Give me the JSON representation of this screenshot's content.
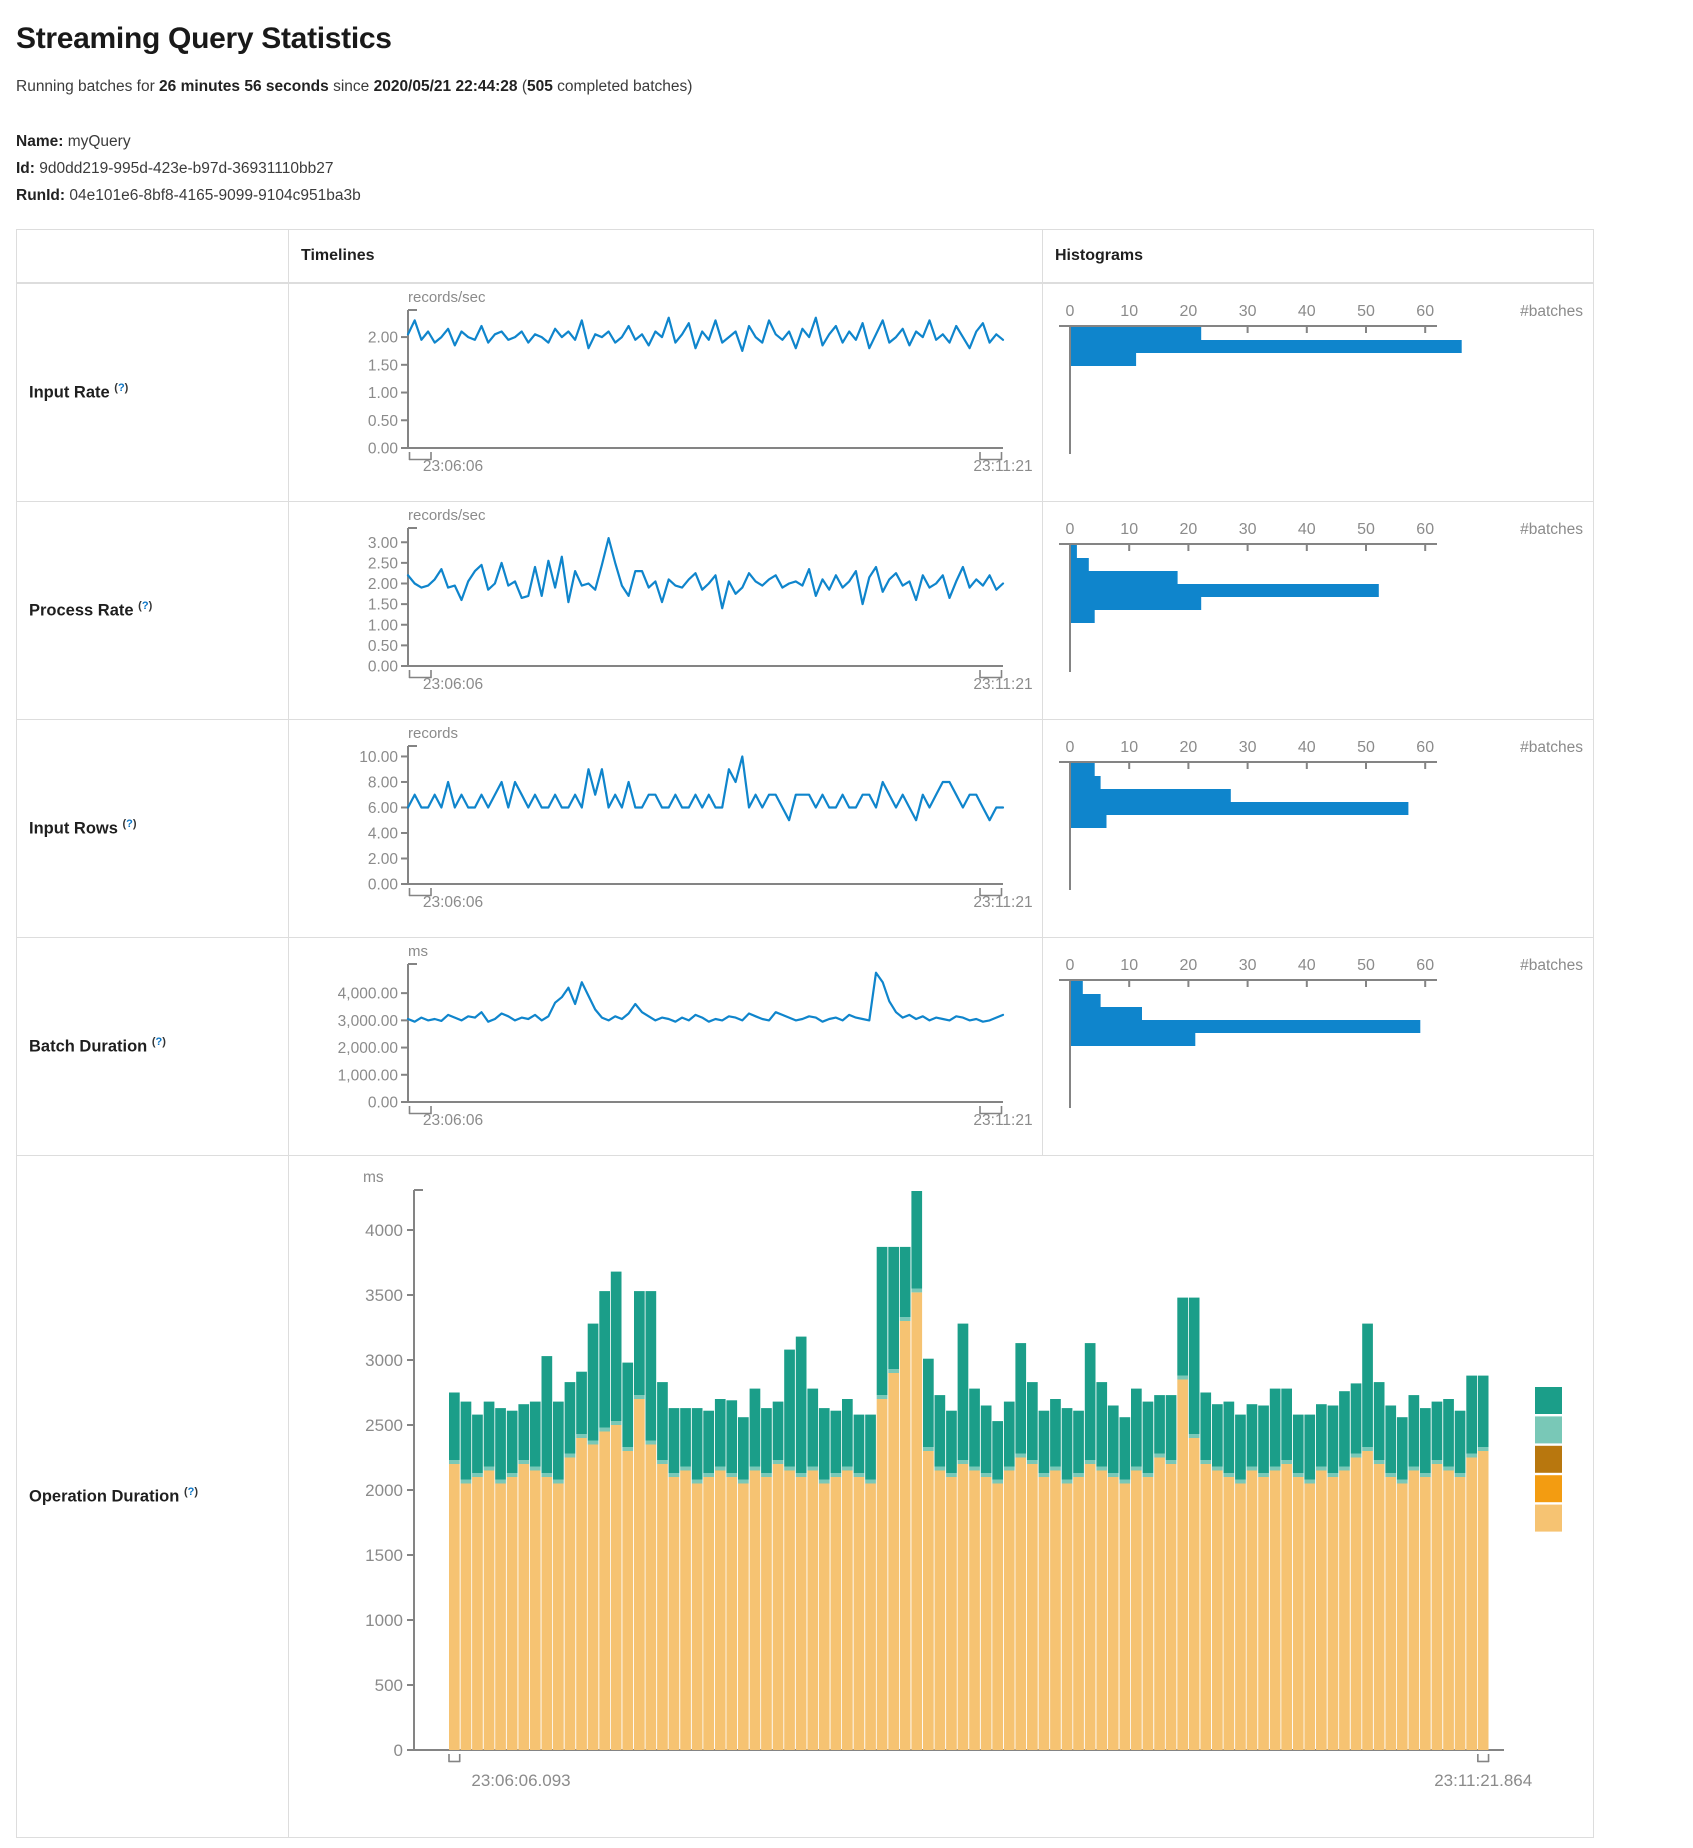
{
  "header": {
    "title": "Streaming Query Statistics",
    "subtitle": [
      {
        "text": "Running batches for ",
        "bold": false
      },
      {
        "text": "26 minutes 56 seconds",
        "bold": true
      },
      {
        "text": " since ",
        "bold": false
      },
      {
        "text": "2020/05/21 22:44:28",
        "bold": true
      },
      {
        "text": " (",
        "bold": false
      },
      {
        "text": "505",
        "bold": true
      },
      {
        "text": " completed batches)",
        "bold": false
      }
    ],
    "info": [
      {
        "label": "Name:",
        "value": "myQuery"
      },
      {
        "label": "Id:",
        "value": "9d0dd219-995d-423e-b97d-36931110bb27"
      },
      {
        "label": "RunId:",
        "value": "04e101e6-8bf8-4165-9099-9104c951ba3b"
      }
    ]
  },
  "table": {
    "headers": {
      "timelines": "Timelines",
      "histograms": "Histograms"
    },
    "help_open": "(",
    "help_q": "?",
    "help_close": ")"
  },
  "colors": {
    "chart_blue": "#0f85cc",
    "axis_line": "#848484",
    "axis_text": "#8b8b8b",
    "help_blue": "#0b74c4",
    "legend": [
      "#1b9e89",
      "#79c8b7",
      "#b8770e",
      "#f39c11",
      "#f6c372"
    ]
  },
  "chart_data": [
    {
      "row_label": "Input Rate",
      "timeline": {
        "type": "line",
        "unit": "records/sec",
        "x_start_label": "23:06:06",
        "x_end_label": "23:11:21",
        "y_max": 2.38,
        "y_ticks": [
          {
            "label": "2.00",
            "value": 2
          },
          {
            "label": "1.50",
            "value": 1.5
          },
          {
            "label": "1.00",
            "value": 1
          },
          {
            "label": "0.50",
            "value": 0.5
          },
          {
            "label": "0.00",
            "value": 0
          }
        ],
        "values": [
          2.05,
          2.3,
          1.95,
          2.1,
          1.9,
          2.0,
          2.15,
          1.85,
          2.1,
          2.0,
          1.95,
          2.2,
          1.9,
          2.05,
          2.1,
          1.95,
          2.0,
          2.1,
          1.9,
          2.05,
          2.0,
          1.9,
          2.15,
          2.0,
          2.1,
          1.95,
          2.3,
          1.8,
          2.05,
          2.0,
          2.1,
          1.9,
          2.0,
          2.2,
          1.95,
          2.05,
          1.85,
          2.1,
          2.0,
          2.35,
          1.9,
          2.05,
          2.25,
          1.8,
          2.1,
          1.95,
          2.3,
          1.9,
          2.0,
          2.1,
          1.75,
          2.2,
          2.0,
          1.9,
          2.3,
          2.05,
          1.95,
          2.1,
          1.8,
          2.15,
          2.0,
          2.35,
          1.85,
          2.05,
          2.2,
          1.9,
          2.1,
          1.95,
          2.25,
          1.8,
          2.05,
          2.3,
          1.9,
          2.0,
          2.15,
          1.85,
          2.1,
          2.0,
          2.3,
          1.95,
          2.05,
          1.9,
          2.2,
          2.0,
          1.8,
          2.1,
          2.25,
          1.9,
          2.05,
          1.95
        ]
      },
      "histogram": {
        "type": "horizontal-bar",
        "axis_label": "#batches",
        "ticks": [
          0,
          10,
          20,
          30,
          40,
          50,
          60
        ],
        "values": [
          22,
          66,
          11
        ]
      }
    },
    {
      "row_label": "Process Rate",
      "timeline": {
        "type": "line",
        "unit": "records/sec",
        "x_start_label": "23:06:06",
        "x_end_label": "23:11:21",
        "y_max": 3.2,
        "y_ticks": [
          {
            "label": "3.00",
            "value": 3
          },
          {
            "label": "2.50",
            "value": 2.5
          },
          {
            "label": "2.00",
            "value": 2
          },
          {
            "label": "1.50",
            "value": 1.5
          },
          {
            "label": "1.00",
            "value": 1
          },
          {
            "label": "0.50",
            "value": 0.5
          },
          {
            "label": "0.00",
            "value": 0
          }
        ],
        "values": [
          2.2,
          2.0,
          1.9,
          1.95,
          2.1,
          2.35,
          1.9,
          1.95,
          1.6,
          2.05,
          2.3,
          2.45,
          1.85,
          2.0,
          2.5,
          1.95,
          2.05,
          1.65,
          1.7,
          2.4,
          1.7,
          2.55,
          1.9,
          2.65,
          1.55,
          2.3,
          1.95,
          2.0,
          1.85,
          2.45,
          3.1,
          2.5,
          1.95,
          1.7,
          2.3,
          2.3,
          1.9,
          2.05,
          1.55,
          2.1,
          1.95,
          1.9,
          2.1,
          2.25,
          1.85,
          2.0,
          2.2,
          1.4,
          2.05,
          1.75,
          1.9,
          2.25,
          2.05,
          1.95,
          2.1,
          2.2,
          1.9,
          2.0,
          2.05,
          1.95,
          2.35,
          1.7,
          2.1,
          1.85,
          2.2,
          1.9,
          2.05,
          2.3,
          1.5,
          2.15,
          2.4,
          1.8,
          2.1,
          2.25,
          1.95,
          2.05,
          1.6,
          2.2,
          1.9,
          2.0,
          2.2,
          1.65,
          2.05,
          2.4,
          1.9,
          2.1,
          1.95,
          2.2,
          1.85,
          2.0
        ]
      },
      "histogram": {
        "type": "horizontal-bar",
        "axis_label": "#batches",
        "ticks": [
          0,
          10,
          20,
          30,
          40,
          50,
          60
        ],
        "values": [
          1,
          3,
          18,
          52,
          22,
          4
        ]
      }
    },
    {
      "row_label": "Input Rows",
      "timeline": {
        "type": "line",
        "unit": "records",
        "x_start_label": "23:06:06",
        "x_end_label": "23:11:21",
        "y_max": 10.35,
        "y_ticks": [
          {
            "label": "10.00",
            "value": 10
          },
          {
            "label": "8.00",
            "value": 8
          },
          {
            "label": "6.00",
            "value": 6
          },
          {
            "label": "4.00",
            "value": 4
          },
          {
            "label": "2.00",
            "value": 2
          },
          {
            "label": "0.00",
            "value": 0
          }
        ],
        "values": [
          6,
          7,
          6,
          6,
          7,
          6,
          8,
          6,
          7,
          6,
          6,
          7,
          6,
          7,
          8,
          6,
          8,
          7,
          6,
          7,
          6,
          6,
          7,
          6,
          6,
          7,
          6,
          9,
          7,
          9,
          6,
          7,
          6,
          8,
          6,
          6,
          7,
          7,
          6,
          6,
          7,
          6,
          6,
          7,
          6,
          7,
          6,
          6,
          9,
          8,
          10,
          6,
          7,
          6,
          7,
          7,
          6,
          5,
          7,
          7,
          7,
          6,
          7,
          6,
          6,
          7,
          6,
          6,
          7,
          7,
          6,
          8,
          7,
          6,
          7,
          6,
          5,
          7,
          6,
          7,
          8,
          8,
          7,
          6,
          7,
          7,
          6,
          5,
          6,
          6
        ]
      },
      "histogram": {
        "type": "horizontal-bar",
        "axis_label": "#batches",
        "ticks": [
          0,
          10,
          20,
          30,
          40,
          50,
          60
        ],
        "values": [
          4,
          5,
          27,
          57,
          6
        ]
      }
    },
    {
      "row_label": "Batch Duration",
      "timeline": {
        "type": "line",
        "unit": "ms",
        "x_start_label": "23:06:06",
        "x_end_label": "23:11:21",
        "y_max": 4850,
        "y_ticks": [
          {
            "label": "4,000.00",
            "value": 4000
          },
          {
            "label": "3,000.00",
            "value": 3000
          },
          {
            "label": "2,000.00",
            "value": 2000
          },
          {
            "label": "1,000.00",
            "value": 1000
          },
          {
            "label": "0.00",
            "value": 0
          }
        ],
        "values": [
          3050,
          2950,
          3100,
          3000,
          3050,
          2980,
          3200,
          3100,
          3000,
          3150,
          3100,
          3300,
          2950,
          3050,
          3250,
          3150,
          3000,
          3100,
          3050,
          3200,
          3000,
          3150,
          3650,
          3850,
          4200,
          3600,
          4400,
          3900,
          3400,
          3100,
          3000,
          3150,
          3050,
          3250,
          3600,
          3300,
          3150,
          3000,
          3100,
          3050,
          2950,
          3100,
          3000,
          3200,
          3100,
          2950,
          3050,
          3000,
          3150,
          3100,
          3000,
          3250,
          3150,
          3050,
          3000,
          3300,
          3200,
          3100,
          3000,
          3050,
          3150,
          3100,
          2950,
          3050,
          3100,
          3000,
          3200,
          3100,
          3050,
          3000,
          4750,
          4400,
          3700,
          3300,
          3100,
          3200,
          3050,
          3150,
          3000,
          3100,
          3050,
          3000,
          3150,
          3100,
          3000,
          3050,
          2950,
          3000,
          3100,
          3200
        ]
      },
      "histogram": {
        "type": "horizontal-bar",
        "axis_label": "#batches",
        "ticks": [
          0,
          10,
          20,
          30,
          40,
          50,
          60
        ],
        "values": [
          2,
          5,
          12,
          59,
          21
        ]
      }
    },
    {
      "row_label": "Operation Duration",
      "timeline": {
        "type": "stacked-bar",
        "unit": "ms",
        "x_start_label": "23:06:06.093",
        "x_end_label": "23:11:21.864",
        "y_max": 4300,
        "y_ticks": [
          {
            "label": "4000",
            "value": 4000
          },
          {
            "label": "3500",
            "value": 3500
          },
          {
            "label": "3000",
            "value": 3000
          },
          {
            "label": "2500",
            "value": 2500
          },
          {
            "label": "2000",
            "value": 2000
          },
          {
            "label": "1500",
            "value": 1500
          },
          {
            "label": "1000",
            "value": 1000
          },
          {
            "label": "500",
            "value": 500
          },
          {
            "label": "0",
            "value": 0
          }
        ],
        "series": [
          {
            "name": "bottom-segment",
            "color": "#f6c372",
            "values": [
              2200,
              2050,
              2100,
              2150,
              2050,
              2100,
              2200,
              2150,
              2100,
              2050,
              2250,
              2400,
              2350,
              2450,
              2500,
              2300,
              2700,
              2350,
              2200,
              2100,
              2150,
              2050,
              2100,
              2150,
              2100,
              2050,
              2150,
              2100,
              2200,
              2150,
              2100,
              2150,
              2050,
              2100,
              2150,
              2100,
              2050,
              2700,
              2900,
              3300,
              3520,
              2300,
              2150,
              2100,
              2200,
              2150,
              2100,
              2050,
              2150,
              2250,
              2200,
              2100,
              2150,
              2050,
              2100,
              2200,
              2150,
              2100,
              2050,
              2150,
              2100,
              2250,
              2200,
              2850,
              2400,
              2200,
              2150,
              2100,
              2050,
              2150,
              2100,
              2150,
              2200,
              2100,
              2050,
              2150,
              2100,
              2150,
              2250,
              2300,
              2200,
              2100,
              2050,
              2150,
              2100,
              2200,
              2150,
              2100,
              2250,
              2300
            ]
          },
          {
            "name": "middle-segment",
            "color": "#79c8b7",
            "const": 30
          },
          {
            "name": "top-segment",
            "color": "#1b9e89",
            "values": [
              520,
              600,
              450,
              500,
              550,
              480,
              430,
              500,
              900,
              600,
              550,
              480,
              900,
              1050,
              1150,
              650,
              800,
              1150,
              600,
              500,
              450,
              550,
              480,
              520,
              560,
              480,
              600,
              500,
              450,
              900,
              1050,
              600,
              550,
              480,
              520,
              450,
              500,
              1140,
              940,
              540,
              750,
              680,
              550,
              480,
              1050,
              600,
              520,
              450,
              500,
              850,
              600,
              480,
              520,
              550,
              480,
              900,
              650,
              520,
              480,
              600,
              550,
              450,
              500,
              600,
              1050,
              520,
              480,
              550,
              500,
              480,
              520,
              600,
              550,
              450,
              500,
              480,
              520,
              580,
              540,
              950,
              600,
              520,
              480,
              550,
              500,
              450,
              520,
              480,
              600,
              550
            ]
          }
        ],
        "legend_colors": [
          "#1b9e89",
          "#79c8b7",
          "#b8770e",
          "#f39c11",
          "#f6c372"
        ]
      }
    }
  ]
}
